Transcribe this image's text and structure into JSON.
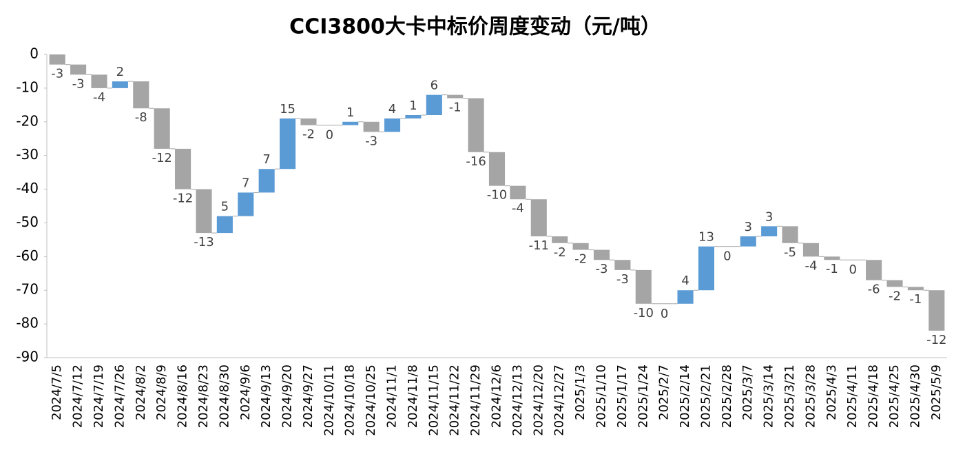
{
  "chart_data": {
    "type": "waterfall",
    "title": "CCI3800大卡中标价周度变动（元/吨）",
    "categories": [
      "2024/7/5",
      "2024/7/12",
      "2024/7/19",
      "2024/7/26",
      "2024/8/2",
      "2024/8/9",
      "2024/8/16",
      "2024/8/23",
      "2024/8/30",
      "2024/9/6",
      "2024/9/13",
      "2024/9/20",
      "2024/9/27",
      "2024/10/11",
      "2024/10/18",
      "2024/10/25",
      "2024/11/1",
      "2024/11/8",
      "2024/11/15",
      "2024/11/22",
      "2024/11/29",
      "2024/12/6",
      "2024/12/13",
      "2024/12/20",
      "2024/12/27",
      "2025/1/3",
      "2025/1/10",
      "2025/1/17",
      "2025/1/24",
      "2025/2/7",
      "2025/2/14",
      "2025/2/21",
      "2025/2/28",
      "2025/3/7",
      "2025/3/14",
      "2025/3/21",
      "2025/3/28",
      "2025/4/3",
      "2025/4/11",
      "2025/4/18",
      "2025/4/25",
      "2025/4/30",
      "2025/5/9"
    ],
    "values": [
      -3,
      -3,
      -4,
      2,
      -8,
      -12,
      -12,
      -13,
      5,
      7,
      7,
      15,
      -2,
      0,
      1,
      -3,
      4,
      1,
      6,
      -1,
      -16,
      -10,
      -4,
      -11,
      -2,
      -2,
      -3,
      -3,
      -10,
      0,
      4,
      13,
      0,
      3,
      3,
      -5,
      -4,
      -1,
      0,
      -6,
      -2,
      -1,
      -12
    ],
    "increase_color": "#5b9bd5",
    "decrease_color": "#a5a5a5",
    "ylim": [
      -90,
      0
    ],
    "yticks": [
      0,
      -10,
      -20,
      -30,
      -40,
      -50,
      -60,
      -70,
      -80,
      -90
    ],
    "grid": false
  }
}
